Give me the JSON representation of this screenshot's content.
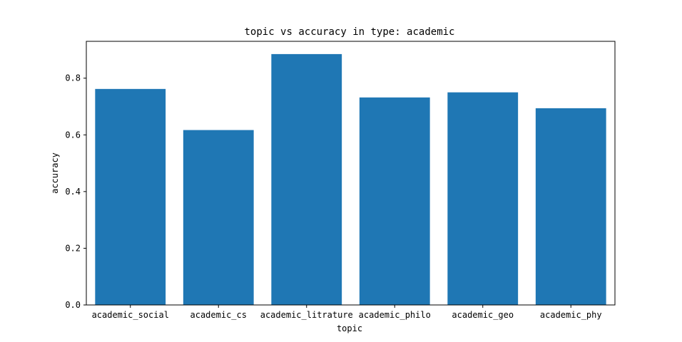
{
  "chart_data": {
    "type": "bar",
    "title": "topic vs accuracy in type: academic",
    "xlabel": "topic",
    "ylabel": "accuracy",
    "categories": [
      "academic_social",
      "academic_cs",
      "academic_litrature",
      "academic_philo",
      "academic_geo",
      "academic_phy"
    ],
    "values": [
      0.762,
      0.617,
      0.885,
      0.732,
      0.75,
      0.694
    ],
    "ylim": [
      0,
      0.93
    ],
    "yticks": [
      0.0,
      0.2,
      0.4,
      0.6,
      0.8
    ],
    "ytick_labels": [
      "0.0",
      "0.2",
      "0.4",
      "0.6",
      "0.8"
    ],
    "bar_color": "#1f77b4",
    "grid": false
  }
}
